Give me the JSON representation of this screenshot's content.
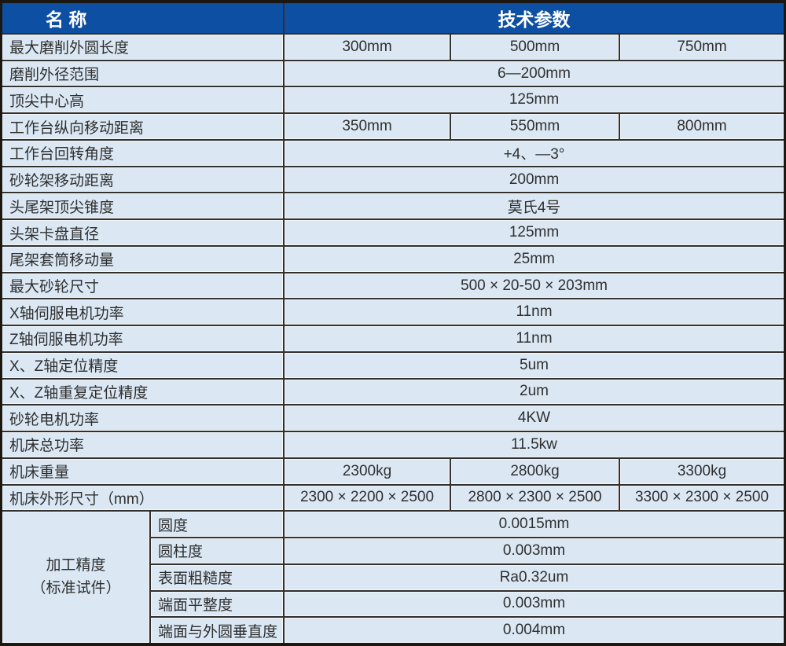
{
  "colors": {
    "header_bg": "#0d4fa2",
    "header_text": "#ffffff",
    "cell_bg": "#dbe8f4",
    "grid_line": "#332f2b",
    "outer_border": "#1b1814",
    "text": "#2f2f2f"
  },
  "table": {
    "header": {
      "name_label": "名 称",
      "params_label": "技术参数"
    },
    "rows": [
      {
        "label": "最大磨削外圆长度",
        "values": [
          "300mm",
          "500mm",
          "750mm"
        ]
      },
      {
        "label": "磨削外径范围",
        "value": "6—200mm"
      },
      {
        "label": "顶尖中心高",
        "value": "125mm"
      },
      {
        "label": "工作台纵向移动距离",
        "values": [
          "350mm",
          "550mm",
          "800mm"
        ]
      },
      {
        "label": "工作台回转角度",
        "value": "+4、—3°"
      },
      {
        "label": "砂轮架移动距离",
        "value": "200mm"
      },
      {
        "label": "头尾架顶尖锥度",
        "value": "莫氏4号"
      },
      {
        "label": "头架卡盘直径",
        "value": "125mm"
      },
      {
        "label": "尾架套筒移动量",
        "value": "25mm"
      },
      {
        "label": "最大砂轮尺寸",
        "value": "500 × 20-50 × 203mm"
      },
      {
        "label": "X轴伺服电机功率",
        "value": "11nm"
      },
      {
        "label": "Z轴伺服电机功率",
        "value": "11nm"
      },
      {
        "label": "X、Z轴定位精度",
        "value": "5um"
      },
      {
        "label": "X、Z轴重复定位精度",
        "value": "2um"
      },
      {
        "label": "砂轮电机功率",
        "value": "4KW"
      },
      {
        "label": "机床总功率",
        "value": "11.5kw"
      },
      {
        "label": "机床重量",
        "values": [
          "2300kg",
          "2800kg",
          "3300kg"
        ]
      },
      {
        "label": "机床外形尺寸（mm）",
        "values": [
          "2300 × 2200 × 2500",
          "2800 × 2300 × 2500",
          "3300 × 2300 × 2500"
        ]
      }
    ],
    "group": {
      "label_line1": "加工精度",
      "label_line2": "（标准试件）",
      "rows": [
        {
          "label": "圆度",
          "value": "0.0015mm"
        },
        {
          "label": "圆柱度",
          "value": "0.003mm"
        },
        {
          "label": "表面粗糙度",
          "value": "Ra0.32um"
        },
        {
          "label": "端面平整度",
          "value": "0.003mm"
        },
        {
          "label": "端面与外圆垂直度",
          "value": "0.004mm"
        }
      ]
    }
  }
}
